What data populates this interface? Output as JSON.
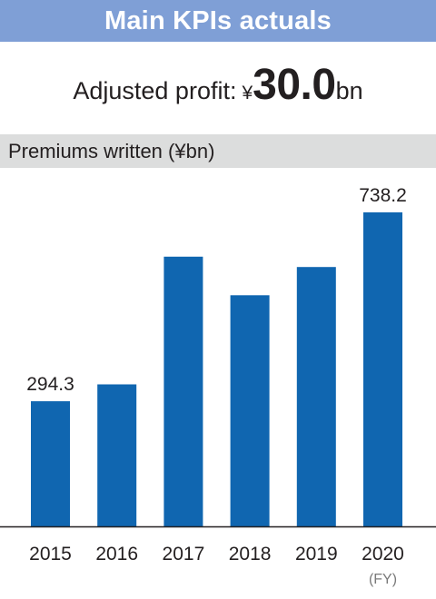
{
  "header": {
    "title": "Main KPIs actuals"
  },
  "kpi": {
    "label": "Adjusted profit:",
    "currency": "¥",
    "value": "30.0",
    "unit": "bn"
  },
  "section": {
    "title": "Premiums written (¥bn)"
  },
  "chart_data": {
    "type": "bar",
    "title": "Premiums written (¥bn)",
    "categories": [
      "2015",
      "2016",
      "2017",
      "2018",
      "2019",
      "2020"
    ],
    "values": [
      294.3,
      333.8,
      634.0,
      543.5,
      609.8,
      738.2
    ],
    "data_labels": [
      "294.3",
      "",
      "",
      "",
      "",
      "738.2"
    ],
    "xlabel": "(FY)",
    "ylabel": "",
    "ylim": [
      0,
      738.2
    ],
    "grid": false,
    "legend": "none",
    "bar_color": "#1066b0"
  },
  "colors": {
    "header_band": "#7f9fd6",
    "section_band": "#dcdddd",
    "bar": "#1066b0",
    "text": "#231f20",
    "axis_note": "#7a7a7a"
  }
}
